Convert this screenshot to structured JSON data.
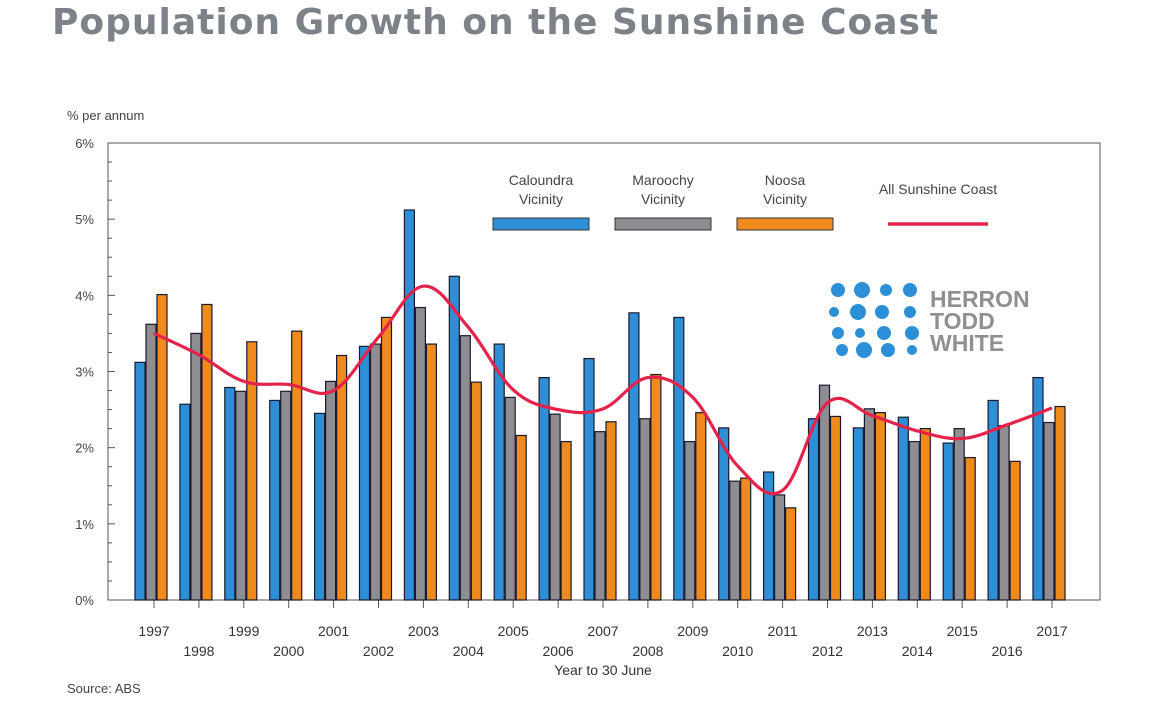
{
  "title": "Population Growth on the Sunshine Coast",
  "chart_data": {
    "type": "bar",
    "title": "Population Growth on the Sunshine Coast",
    "ylabel": "% per annum",
    "xlabel": "Year to 30 June",
    "source": "Source: ABS",
    "ylim": [
      0,
      6
    ],
    "yticks": [
      "0%",
      "1%",
      "2%",
      "3%",
      "4%",
      "5%",
      "6%"
    ],
    "categories": [
      "1997",
      "1998",
      "1999",
      "2000",
      "2001",
      "2002",
      "2003",
      "2004",
      "2005",
      "2006",
      "2007",
      "2008",
      "2009",
      "2010",
      "2011",
      "2012",
      "2013",
      "2014",
      "2015",
      "2016",
      "2017"
    ],
    "series": [
      {
        "name": "Caloundra Vicinity",
        "type": "bar",
        "color": "#2f8fd6",
        "values": [
          3.12,
          2.57,
          2.79,
          2.62,
          2.45,
          3.33,
          5.12,
          4.25,
          3.36,
          2.92,
          3.17,
          3.77,
          3.71,
          2.26,
          1.68,
          2.38,
          2.26,
          2.4,
          2.06,
          2.62,
          2.92
        ]
      },
      {
        "name": "Maroochy Vicinity",
        "type": "bar",
        "color": "#8e8d92",
        "values": [
          3.62,
          3.5,
          2.74,
          2.74,
          2.87,
          3.36,
          3.84,
          3.47,
          2.66,
          2.44,
          2.21,
          2.38,
          2.08,
          1.56,
          1.38,
          2.82,
          2.51,
          2.08,
          2.25,
          2.29,
          2.33
        ]
      },
      {
        "name": "Noosa Vicinity",
        "type": "bar",
        "color": "#f08a1c",
        "values": [
          4.01,
          3.88,
          3.39,
          3.53,
          3.21,
          3.71,
          3.36,
          2.86,
          2.16,
          2.08,
          2.34,
          2.96,
          2.46,
          1.6,
          1.21,
          2.41,
          2.46,
          2.25,
          1.87,
          1.82,
          2.54
        ]
      },
      {
        "name": "All Sunshine Coast",
        "type": "line",
        "color": "#e4224a",
        "values": [
          3.5,
          3.22,
          2.87,
          2.83,
          2.75,
          3.45,
          4.12,
          3.58,
          2.76,
          2.5,
          2.51,
          2.92,
          2.66,
          1.76,
          1.44,
          2.59,
          2.42,
          2.22,
          2.12,
          2.3,
          2.52
        ]
      }
    ],
    "legend": [
      {
        "label_line1": "Caloundra",
        "label_line2": "Vicinity",
        "color": "#2f8fd6",
        "kind": "bar"
      },
      {
        "label_line1": "Maroochy",
        "label_line2": "Vicinity",
        "color": "#8e8d92",
        "kind": "bar"
      },
      {
        "label_line1": "Noosa",
        "label_line2": "Vicinity",
        "color": "#f08a1c",
        "kind": "bar"
      },
      {
        "label_line1": "All Sunshine Coast",
        "label_line2": "",
        "color": "#e4224a",
        "kind": "line"
      }
    ],
    "legend_position": "top-right"
  },
  "logo": {
    "line1": "HERRON",
    "line2": "TODD",
    "line3": "WHITE",
    "color": "#2b90d8",
    "text_color": "#8e9094"
  }
}
